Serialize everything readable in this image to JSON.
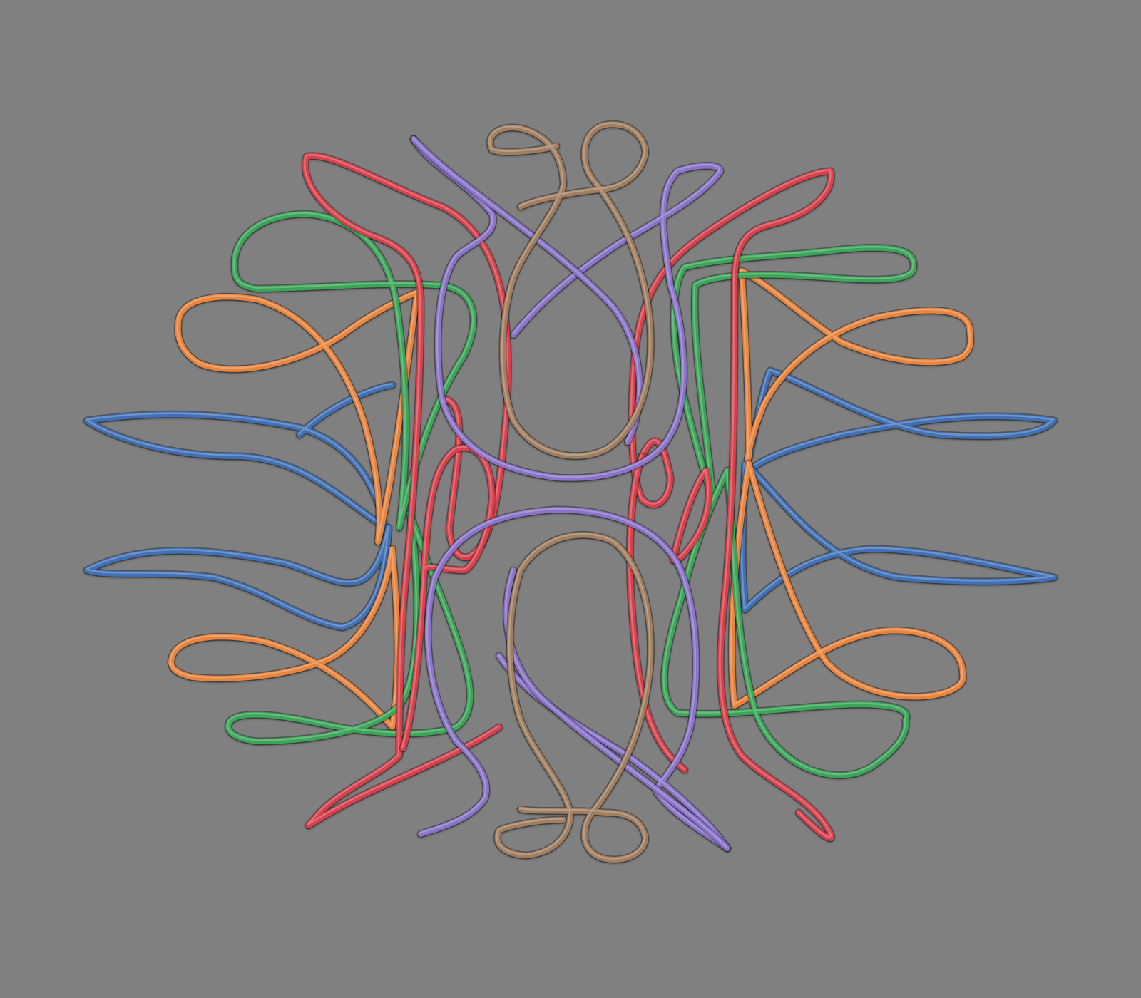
{
  "scene": {
    "background": "#808080",
    "subject": "coil-rendering"
  },
  "colors": {
    "blue": "#3f6fb6",
    "orange": "#e8843e",
    "green": "#3aa558",
    "red": "#d9414b",
    "purple": "#8a73c9",
    "brown": "#a07e5e"
  },
  "coils": [
    {
      "name": "coil-blue-upper-left",
      "color_key": "blue"
    },
    {
      "name": "coil-blue-lower-left",
      "color_key": "blue"
    },
    {
      "name": "coil-blue-upper-right",
      "color_key": "blue"
    },
    {
      "name": "coil-blue-lower-right",
      "color_key": "blue"
    },
    {
      "name": "coil-orange-upper-left",
      "color_key": "orange"
    },
    {
      "name": "coil-orange-lower-left",
      "color_key": "orange"
    },
    {
      "name": "coil-orange-upper-right",
      "color_key": "orange"
    },
    {
      "name": "coil-orange-lower-right",
      "color_key": "orange"
    },
    {
      "name": "coil-green-upper-left",
      "color_key": "green"
    },
    {
      "name": "coil-green-lower-left",
      "color_key": "green"
    },
    {
      "name": "coil-green-upper-right",
      "color_key": "green"
    },
    {
      "name": "coil-green-lower-right",
      "color_key": "green"
    },
    {
      "name": "coil-red-left",
      "color_key": "red"
    },
    {
      "name": "coil-red-right",
      "color_key": "red"
    },
    {
      "name": "coil-red-center-left",
      "color_key": "red"
    },
    {
      "name": "coil-red-center-right",
      "color_key": "red"
    },
    {
      "name": "coil-purple-top",
      "color_key": "purple"
    },
    {
      "name": "coil-purple-bottom",
      "color_key": "purple"
    },
    {
      "name": "coil-purple-left-strand",
      "color_key": "purple"
    },
    {
      "name": "coil-purple-right-strand",
      "color_key": "purple"
    },
    {
      "name": "coil-brown-top",
      "color_key": "brown"
    },
    {
      "name": "coil-brown-bottom",
      "color_key": "brown"
    }
  ]
}
